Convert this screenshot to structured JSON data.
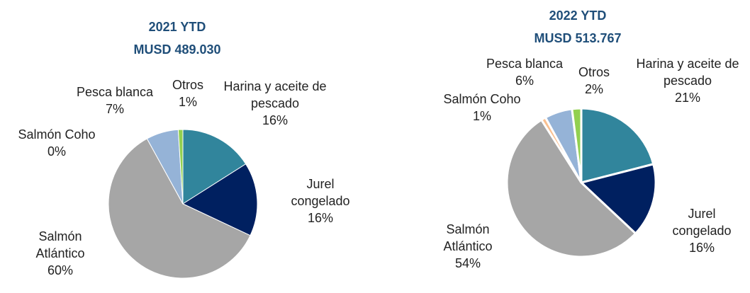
{
  "chart_data": [
    {
      "type": "pie",
      "title": "2021 YTD",
      "subtitle": "MUSD 489.030",
      "categories": [
        "Harina y aceite de pescado",
        "Jurel congelado",
        "Salmón Atlántico",
        "Salmón Coho",
        "Pesca blanca",
        "Otros"
      ],
      "values": [
        16,
        16,
        60,
        0,
        7,
        1
      ],
      "value_labels": [
        "16%",
        "16%",
        "60%",
        "0%",
        "7%",
        "1%"
      ],
      "colors": [
        "#31859c",
        "#002060",
        "#a6a6a6",
        "#fac090",
        "#95b3d7",
        "#92d050"
      ]
    },
    {
      "type": "pie",
      "title": "2022 YTD",
      "subtitle": "MUSD 513.767",
      "categories": [
        "Harina y aceite de pescado",
        "Jurel congelado",
        "Salmón Atlántico",
        "Salmón Coho",
        "Pesca blanca",
        "Otros"
      ],
      "values": [
        21,
        16,
        54,
        1,
        6,
        2
      ],
      "value_labels": [
        "21%",
        "16%",
        "54%",
        "1%",
        "6%",
        "2%"
      ],
      "colors": [
        "#31859c",
        "#002060",
        "#a6a6a6",
        "#fac090",
        "#95b3d7",
        "#92d050"
      ]
    }
  ]
}
